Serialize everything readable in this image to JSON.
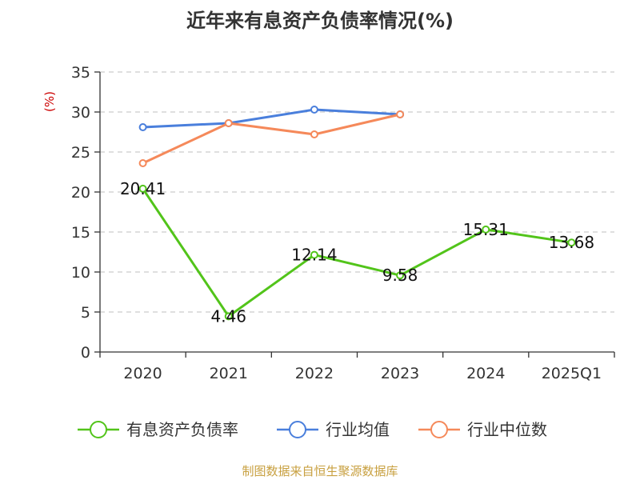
{
  "chart_data": {
    "type": "line",
    "title": "近年来有息资产负债率情况(%)",
    "ylabel": "(%)",
    "xlabel": "",
    "categories": [
      "2020",
      "2021",
      "2022",
      "2023",
      "2024",
      "2025Q1"
    ],
    "ylim": [
      0,
      35
    ],
    "yticks": [
      0,
      5,
      10,
      15,
      20,
      25,
      30,
      35
    ],
    "grid": true,
    "legend_position": "bottom",
    "series": [
      {
        "name": "有息资产负债率",
        "color": "#52c41a",
        "values": [
          20.41,
          4.46,
          12.14,
          9.58,
          15.31,
          13.68
        ],
        "labels": [
          "20.41",
          "4.46",
          "12.14",
          "9.58",
          "15.31",
          "13.68"
        ]
      },
      {
        "name": "行业均值",
        "color": "#4a7fdc",
        "values": [
          28.1,
          28.6,
          30.3,
          29.7,
          null,
          null
        ]
      },
      {
        "name": "行业中位数",
        "color": "#f5895a",
        "values": [
          23.6,
          28.6,
          27.2,
          29.7,
          null,
          null
        ]
      }
    ],
    "source": "制图数据来自恒生聚源数据库"
  }
}
